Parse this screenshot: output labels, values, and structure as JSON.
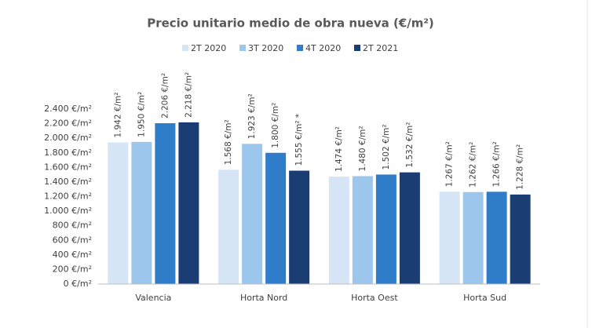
{
  "chart_data": {
    "type": "bar",
    "title": "Precio unitario medio de obra nueva (€/m²)",
    "categories": [
      "Valencia",
      "Horta Nord",
      "Horta Oest",
      "Horta Sud"
    ],
    "series": [
      {
        "name": "2T 2020",
        "color": "#d5e5f6",
        "values": [
          1942,
          1568,
          1474,
          1267
        ],
        "value_labels": [
          "1.942 €/m²",
          "1.568 €/m²",
          "1.474 €/m²",
          "1.267 €/m²"
        ]
      },
      {
        "name": "3T 2020",
        "color": "#9dc6ec",
        "values": [
          1950,
          1923,
          1480,
          1262
        ],
        "value_labels": [
          "1.950 €/m²",
          "1.923 €/m²",
          "1.480 €/m²",
          "1.262 €/m²"
        ]
      },
      {
        "name": "4T 2020",
        "color": "#2f7dc9",
        "values": [
          2206,
          1800,
          1502,
          1266
        ],
        "value_labels": [
          "2.206 €/m²",
          "1.800 €/m²",
          "1.502 €/m²",
          "1.266 €/m²"
        ]
      },
      {
        "name": "2T 2021",
        "color": "#1a3e73",
        "values": [
          2218,
          1555,
          1532,
          1228
        ],
        "value_labels": [
          "2.218 €/m²",
          "1.555 €/m² *",
          "1.532 €/m²",
          "1.228 €/m²"
        ]
      }
    ],
    "ylim": [
      0,
      2400
    ],
    "yticks": [
      {
        "value": 0,
        "label": "0 €/m²"
      },
      {
        "value": 200,
        "label": "200 €/m²"
      },
      {
        "value": 400,
        "label": "400 €/m²"
      },
      {
        "value": 600,
        "label": "600 €/m²"
      },
      {
        "value": 800,
        "label": "800 €/m²"
      },
      {
        "value": 1000,
        "label": "1.000 €/m²"
      },
      {
        "value": 1200,
        "label": "1.200 €/m²"
      },
      {
        "value": 1400,
        "label": "1.400 €/m²"
      },
      {
        "value": 1600,
        "label": "1.600 €/m²"
      },
      {
        "value": 1800,
        "label": "1.800 €/m²"
      },
      {
        "value": 2000,
        "label": "2.000 €/m²"
      },
      {
        "value": 2200,
        "label": "2.200 €/m²"
      },
      {
        "value": 2400,
        "label": "2.400 €/m²"
      }
    ],
    "grid": false
  }
}
